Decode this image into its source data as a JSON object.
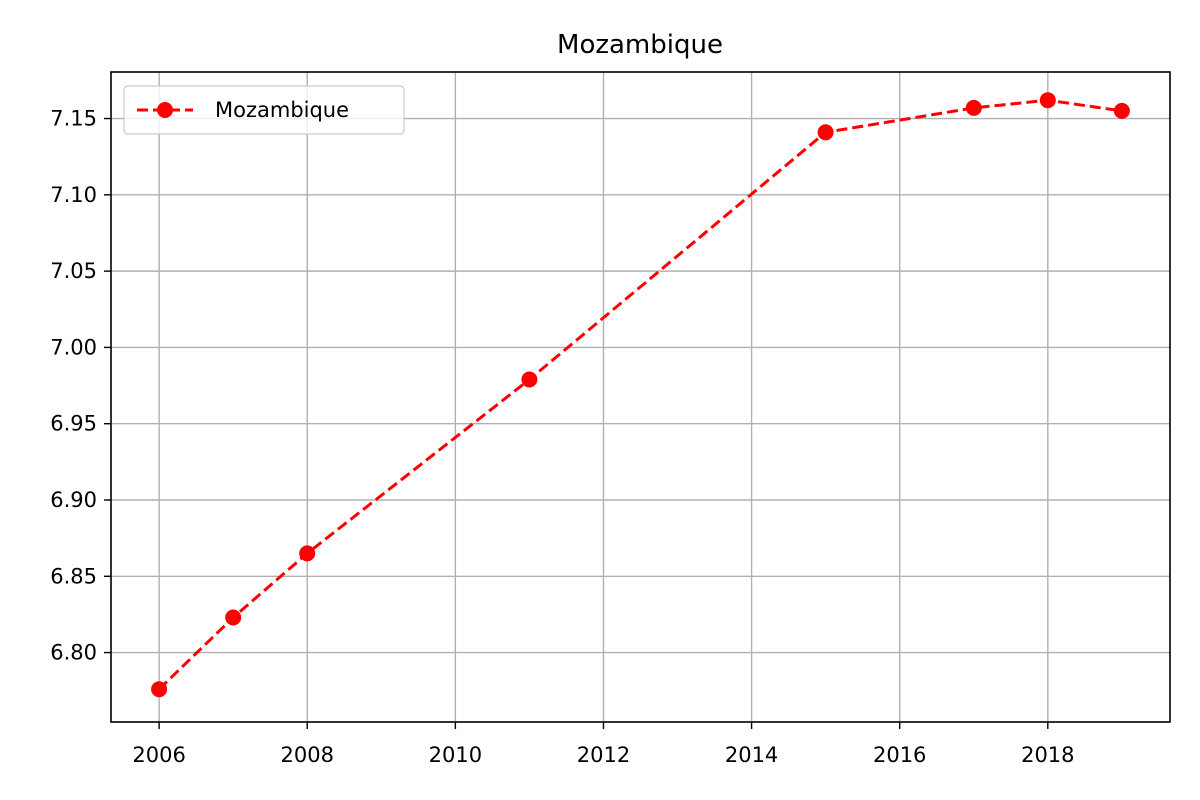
{
  "chart_data": {
    "type": "line",
    "title": "Mozambique",
    "xlabel": "",
    "ylabel": "",
    "xlim": [
      2005.35,
      2019.65
    ],
    "ylim": [
      6.7545,
      7.1805
    ],
    "x_ticks": [
      2006,
      2008,
      2010,
      2012,
      2014,
      2016,
      2018
    ],
    "x_tick_labels": [
      "2006",
      "2008",
      "2010",
      "2012",
      "2014",
      "2016",
      "2018"
    ],
    "y_ticks": [
      6.8,
      6.85,
      6.9,
      6.95,
      7.0,
      7.05,
      7.1,
      7.15
    ],
    "y_tick_labels": [
      "6.80",
      "6.85",
      "6.90",
      "6.95",
      "7.00",
      "7.05",
      "7.10",
      "7.15"
    ],
    "grid": true,
    "legend_position": "top-left",
    "series": [
      {
        "name": "Mozambique",
        "color": "#ff0000",
        "line_style": "dashed",
        "marker": "circle",
        "x": [
          2006,
          2007,
          2008,
          2011,
          2015,
          2017,
          2018,
          2019
        ],
        "y": [
          6.776,
          6.823,
          6.865,
          6.979,
          7.141,
          7.157,
          7.162,
          7.155
        ]
      }
    ]
  }
}
